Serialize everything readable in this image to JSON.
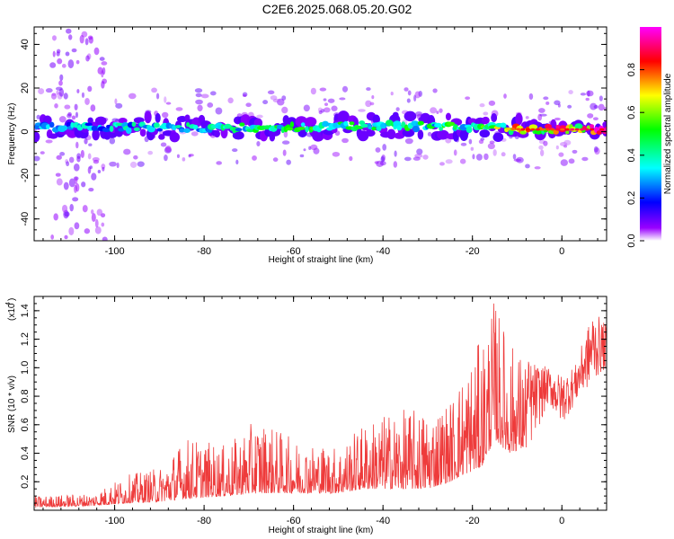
{
  "title": "C2E6.2025.068.05.20.G02",
  "colors": {
    "snr_line": "#ee3b3b",
    "frame": "#000000",
    "background": "#ffffff"
  },
  "chart_data": [
    {
      "type": "heatmap",
      "xlabel": "Height of straight line (km)",
      "ylabel": "Frequency (Hz)",
      "xlim": [
        -118,
        10
      ],
      "ylim": [
        -50,
        48
      ],
      "x_ticks": [
        "-100",
        "-80",
        "-60",
        "-40",
        "-20",
        "0"
      ],
      "y_ticks": [
        "-40",
        "-20",
        "0",
        "20",
        "40"
      ],
      "colorbar": {
        "label": "Normalized spectral amplitude",
        "range": [
          0,
          1
        ],
        "ticks": [
          "0.0",
          "0.2",
          "0.4",
          "0.6",
          "0.8"
        ],
        "colormap": [
          "#ffffff",
          "#9900ff",
          "#0000ff",
          "#00ffff",
          "#00ff00",
          "#ffff00",
          "#ff0000",
          "#ff00ff"
        ]
      },
      "band": {
        "description_points": [
          {
            "x": -115,
            "center": 2,
            "amp": 0.35
          },
          {
            "x": -100,
            "center": 2,
            "amp": 0.4
          },
          {
            "x": -80,
            "center": 2,
            "amp": 0.45
          },
          {
            "x": -60,
            "center": 2,
            "amp": 0.55
          },
          {
            "x": -40,
            "center": 3,
            "amp": 0.5
          },
          {
            "x": -20,
            "center": 2,
            "amp": 0.55
          },
          {
            "x": -8,
            "center": 1,
            "amp": 0.85
          },
          {
            "x": 5,
            "center": 1,
            "amp": 0.95
          }
        ]
      }
    },
    {
      "type": "line",
      "xlabel": "Height of straight line (km)",
      "ylabel": "SNR (10 * v/v)",
      "y_exponent": "(x10",
      "y_exponent_power": "4",
      "y_exponent_close": ")",
      "xlim": [
        -118,
        10
      ],
      "ylim": [
        0,
        1.5
      ],
      "x_ticks": [
        "-100",
        "-80",
        "-60",
        "-40",
        "-20",
        "0"
      ],
      "y_ticks": [
        "0.2",
        "0.4",
        "0.6",
        "0.8",
        "1.0",
        "1.2",
        "1.4"
      ],
      "series": [
        {
          "envelope": [
            {
              "x": -118,
              "base": 0.02,
              "peak": 0.1
            },
            {
              "x": -105,
              "base": 0.03,
              "peak": 0.12
            },
            {
              "x": -97,
              "base": 0.05,
              "peak": 0.25
            },
            {
              "x": -90,
              "base": 0.06,
              "peak": 0.3
            },
            {
              "x": -84,
              "base": 0.08,
              "peak": 0.52
            },
            {
              "x": -75,
              "base": 0.1,
              "peak": 0.45
            },
            {
              "x": -68,
              "base": 0.12,
              "peak": 0.65
            },
            {
              "x": -60,
              "base": 0.12,
              "peak": 0.5
            },
            {
              "x": -50,
              "base": 0.12,
              "peak": 0.45
            },
            {
              "x": -44,
              "base": 0.15,
              "peak": 0.62
            },
            {
              "x": -38,
              "base": 0.15,
              "peak": 0.7
            },
            {
              "x": -30,
              "base": 0.15,
              "peak": 0.72
            },
            {
              "x": -25,
              "base": 0.2,
              "peak": 0.78
            },
            {
              "x": -22,
              "base": 0.25,
              "peak": 1.0
            },
            {
              "x": -18,
              "base": 0.3,
              "peak": 1.2
            },
            {
              "x": -15,
              "base": 0.5,
              "peak": 1.5
            },
            {
              "x": -12,
              "base": 0.4,
              "peak": 1.2
            },
            {
              "x": -7,
              "base": 0.45,
              "peak": 1.05
            },
            {
              "x": -3,
              "base": 0.75,
              "peak": 1.0
            },
            {
              "x": 0,
              "base": 0.6,
              "peak": 0.95
            },
            {
              "x": 3,
              "base": 0.75,
              "peak": 1.02
            },
            {
              "x": 7,
              "base": 0.9,
              "peak": 1.4
            },
            {
              "x": 10,
              "base": 1.0,
              "peak": 1.3
            }
          ]
        }
      ]
    }
  ]
}
